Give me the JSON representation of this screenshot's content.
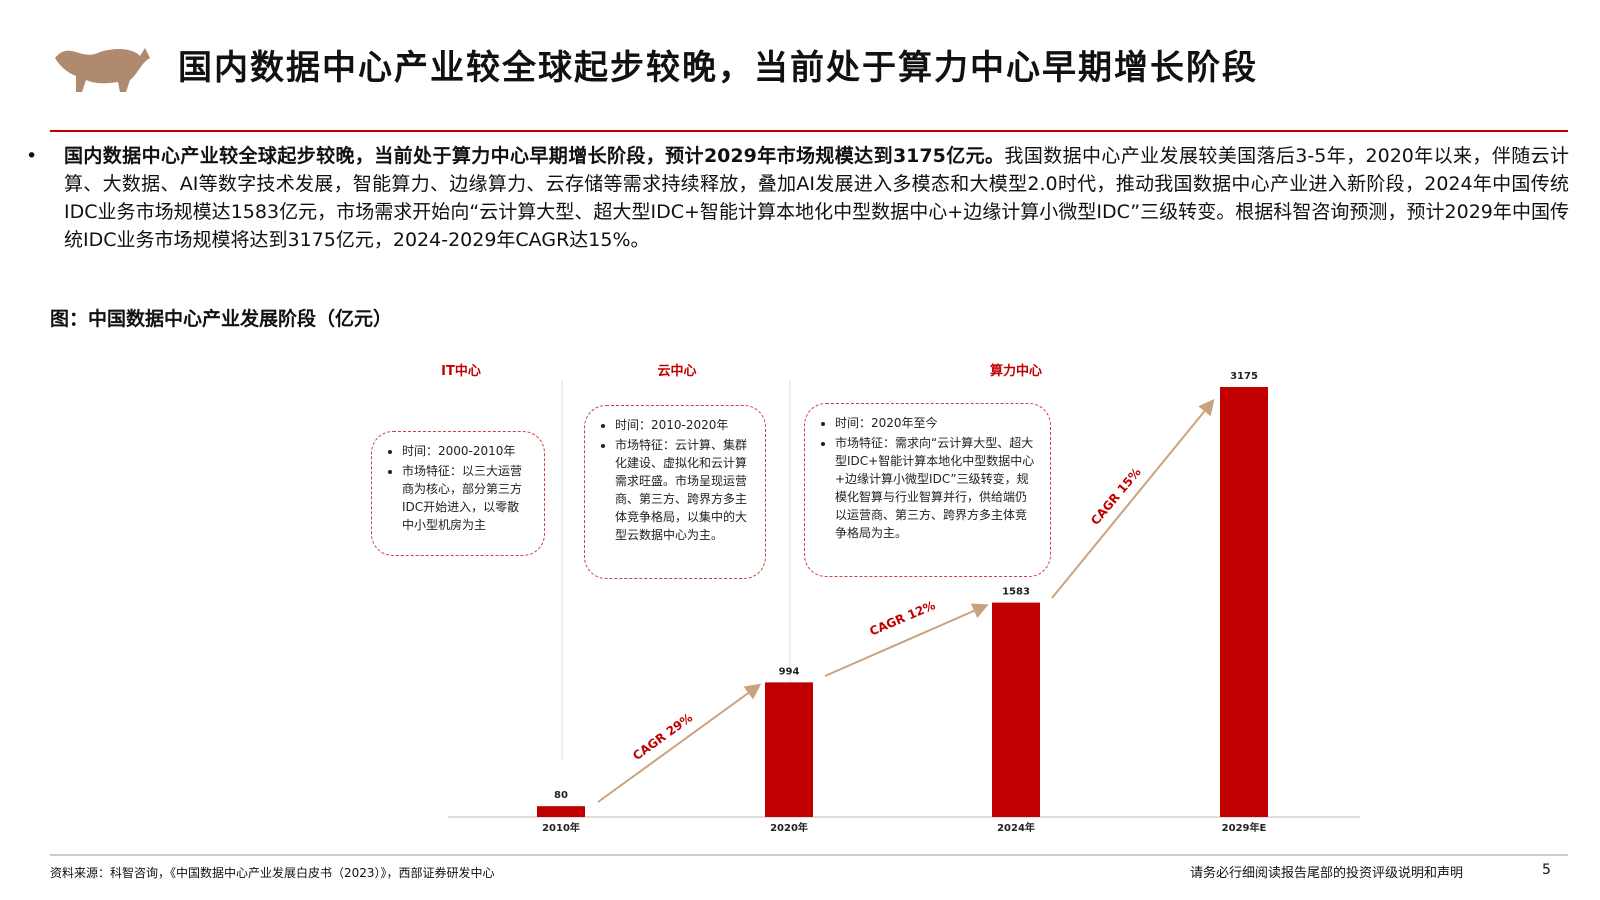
{
  "header": {
    "title": "国内数据中心产业较全球起步较晚，当前处于算力中心早期增长阶段"
  },
  "body": {
    "bold": "国内数据中心产业较全球起步较晚，当前处于算力中心早期增长阶段，预计2029年市场规模达到3175亿元。",
    "text": "我国数据中心产业发展较美国落后3-5年，2020年以来，伴随云计算、大数据、AI等数字技术发展，智能算力、边缘算力、云存储等需求持续释放，叠加AI发展进入多模态和大模型2.0时代，推动我国数据中心产业进入新阶段，2024年中国传统IDC业务市场规模达1583亿元，市场需求开始向“云计算大型、超大型IDC+智能计算本地化中型数据中心+边缘计算小微型IDC”三级转变。根据科智咨询预测，预计2029年中国传统IDC业务市场规模将达到3175亿元，2024-2029年CAGR达15%。"
  },
  "chart_data": {
    "type": "bar",
    "title": "图：中国数据中心产业发展阶段（亿元）",
    "categories": [
      "2010年",
      "2020年",
      "2024年",
      "2029年E"
    ],
    "values": [
      80,
      994,
      1583,
      3175
    ],
    "color": "#c00000",
    "phases": [
      {
        "name": "IT中心",
        "items": [
          "时间：2000-2010年",
          "市场特征：以三大运营商为核心，部分第三方IDC开始进入，以零散中小型机房为主"
        ]
      },
      {
        "name": "云中心",
        "items": [
          "时间：2010-2020年",
          "市场特征：云计算、集群化建设、虚拟化和云计算需求旺盛。市场呈现运营商、第三方、跨界方多主体竞争格局，以集中的大型云数据中心为主。"
        ]
      },
      {
        "name": "算力中心",
        "items": [
          "时间：2020年至今",
          "市场特征：需求向“云计算大型、超大型IDC+智能计算本地化中型数据中心+边缘计算小微型IDC”三级转变，规模化智算与行业智算并行，供给端仍以运营商、第三方、跨界方多主体竞争格局为主。"
        ]
      }
    ],
    "annotations": [
      "CAGR 29%",
      "CAGR 12%",
      "CAGR 15%"
    ]
  },
  "footer": {
    "source": "资料来源：科智咨询，《中国数据中心产业发展白皮书（2023）》，西部证券研发中心",
    "disclaimer": "请务必行细阅读报告尾部的投资评级说明和声明",
    "page": "5"
  }
}
